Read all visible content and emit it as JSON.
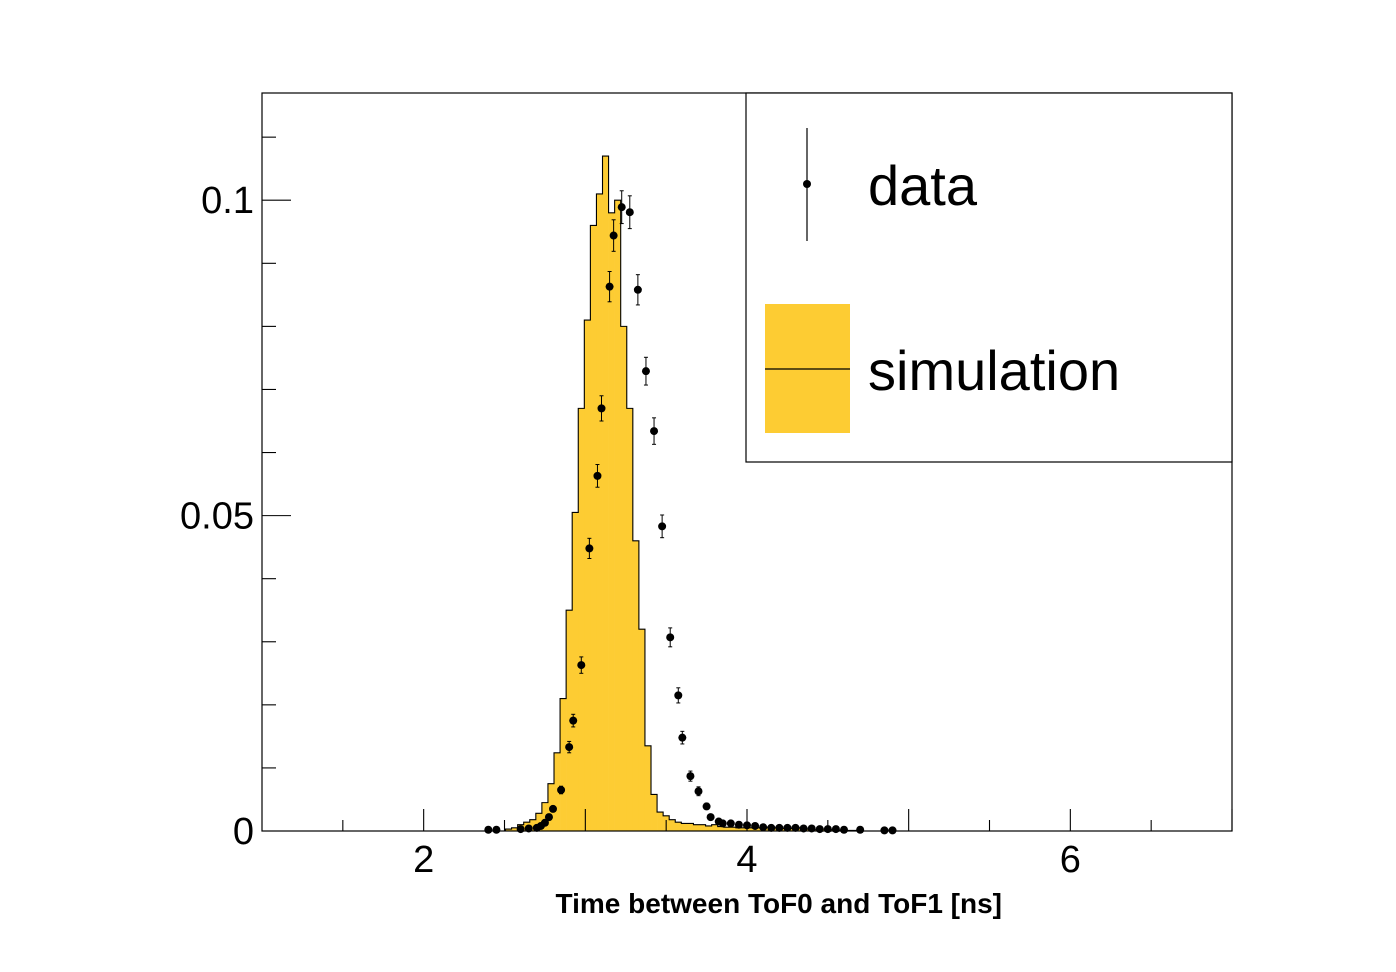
{
  "colors": {
    "simulation_fill": "#fdcc33",
    "line": "#000000",
    "background": "#ffffff"
  },
  "chart_data": {
    "type": "bar",
    "title": "",
    "xlabel": "Time between ToF0 and ToF1 [ns]",
    "ylabel": "",
    "xlim": [
      1.0,
      7.0
    ],
    "ylim": [
      0,
      0.117
    ],
    "grid": false,
    "legend_position": "top-right",
    "xticks": [
      {
        "value": 2,
        "label": "2"
      },
      {
        "value": 4,
        "label": "4"
      },
      {
        "value": 6,
        "label": "6"
      }
    ],
    "yticks": [
      {
        "value": 0,
        "label": "0"
      },
      {
        "value": 0.05,
        "label": "0.05"
      },
      {
        "value": 0.1,
        "label": "0.1"
      }
    ],
    "series": [
      {
        "name": "simulation",
        "kind": "histogram",
        "bin_width": 0.0375,
        "x": [
          2.525,
          2.5625,
          2.6,
          2.6375,
          2.675,
          2.7125,
          2.75,
          2.7875,
          2.825,
          2.8625,
          2.9,
          2.9375,
          2.975,
          3.0125,
          3.05,
          3.0875,
          3.125,
          3.1625,
          3.2,
          3.2375,
          3.275,
          3.3125,
          3.35,
          3.3875,
          3.425,
          3.4625,
          3.5,
          3.5375,
          3.575,
          3.6125,
          3.65,
          3.6875,
          3.725,
          3.7625,
          3.8,
          3.8375,
          3.875,
          3.9125,
          3.95,
          3.9875,
          4.025,
          4.0625,
          4.1,
          4.1375,
          4.175,
          4.2125,
          4.25,
          4.2875,
          4.325,
          4.3625,
          4.4,
          4.4375,
          4.475,
          4.5125,
          4.55,
          4.5875,
          4.625,
          4.6625
        ],
        "values": [
          0.0003,
          0.0005,
          0.001,
          0.0014,
          0.0018,
          0.0028,
          0.0045,
          0.0075,
          0.0124,
          0.021,
          0.035,
          0.0505,
          0.067,
          0.081,
          0.096,
          0.101,
          0.107,
          0.098,
          0.1,
          0.08,
          0.067,
          0.046,
          0.032,
          0.0135,
          0.0058,
          0.003,
          0.0024,
          0.0018,
          0.0014,
          0.0012,
          0.0012,
          0.001,
          0.001,
          0.0008,
          0.001,
          0.0007,
          0.0006,
          0.0006,
          0.0005,
          0.0005,
          0.0005,
          0.0005,
          0.0006,
          0.0006,
          0.0005,
          0.0004,
          0.0004,
          0.0004,
          0.0005,
          0.0003,
          0.0003,
          0.0002,
          0.0003,
          0.0002,
          0.0002,
          0.0001,
          0.0001,
          0.0001
        ]
      },
      {
        "name": "data",
        "kind": "points",
        "x": [
          2.4,
          2.45,
          2.6,
          2.65,
          2.7,
          2.725,
          2.75,
          2.775,
          2.8,
          2.85,
          2.9,
          2.925,
          2.975,
          3.025,
          3.075,
          3.1,
          3.15,
          3.175,
          3.225,
          3.275,
          3.325,
          3.375,
          3.425,
          3.475,
          3.525,
          3.575,
          3.6,
          3.65,
          3.7,
          3.75,
          3.775,
          3.825,
          3.85,
          3.9,
          3.95,
          4.0,
          4.05,
          4.1,
          4.15,
          4.2,
          4.25,
          4.3,
          4.35,
          4.4,
          4.45,
          4.5,
          4.55,
          4.6,
          4.7,
          4.85,
          4.9
        ],
        "values": [
          0.0002,
          0.0002,
          0.0003,
          0.0004,
          0.0005,
          0.0008,
          0.0013,
          0.0022,
          0.0035,
          0.0065,
          0.0133,
          0.0175,
          0.0263,
          0.0448,
          0.0563,
          0.067,
          0.0863,
          0.0944,
          0.0989,
          0.0981,
          0.0858,
          0.0729,
          0.0634,
          0.0483,
          0.0307,
          0.0215,
          0.0148,
          0.0087,
          0.0063,
          0.0039,
          0.0022,
          0.0015,
          0.0012,
          0.0012,
          0.001,
          0.0009,
          0.0008,
          0.0006,
          0.0005,
          0.0005,
          0.0005,
          0.0005,
          0.0004,
          0.0004,
          0.0003,
          0.0003,
          0.0003,
          0.0002,
          0.0002,
          0.0001,
          0.0001
        ],
        "errors": [
          0.0001,
          0.0001,
          0.0001,
          0.0001,
          0.0002,
          0.0002,
          0.0003,
          0.0004,
          0.0004,
          0.0006,
          0.0009,
          0.001,
          0.0013,
          0.0016,
          0.0018,
          0.002,
          0.0024,
          0.0025,
          0.0026,
          0.0026,
          0.0024,
          0.0022,
          0.0021,
          0.0018,
          0.0015,
          0.0012,
          0.001,
          0.0008,
          0.0007,
          0.0005,
          0.0004,
          0.0003,
          0.0003,
          0.0003,
          0.0003,
          0.0003,
          0.0002,
          0.0002,
          0.0002,
          0.0002,
          0.0002,
          0.0002,
          0.0002,
          0.0002,
          0.0001,
          0.0001,
          0.0001,
          0.0001,
          0.0001,
          0.0001,
          0.0001
        ]
      }
    ],
    "legend": [
      {
        "label": "data",
        "marker": "point-with-error"
      },
      {
        "label": "simulation",
        "marker": "filled-box"
      }
    ]
  }
}
